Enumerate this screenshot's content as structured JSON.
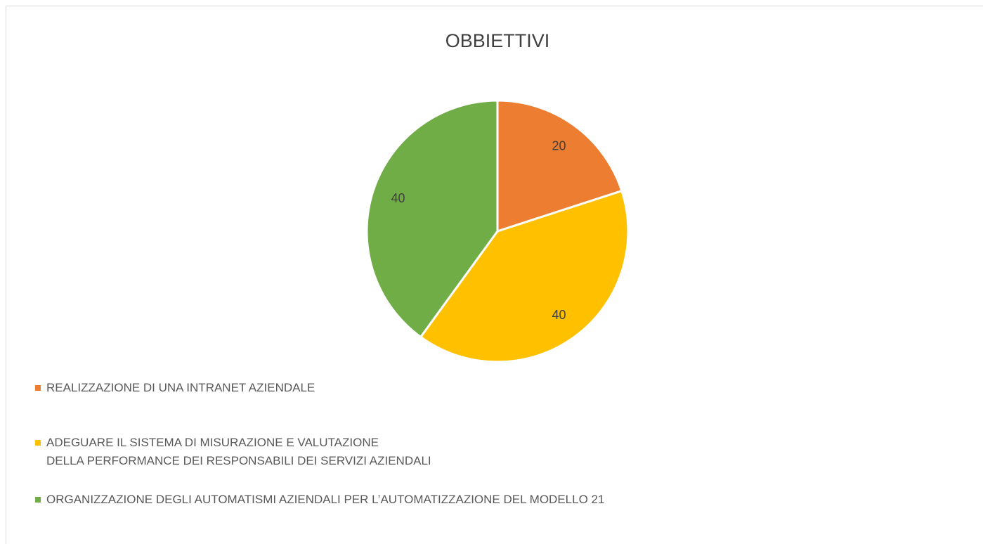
{
  "chart_data": {
    "type": "pie",
    "title": "OBBIETTIVI",
    "categories": [
      "REALIZZAZIONE DI UNA INTRANET AZIENDALE",
      "ADEGUARE IL SISTEMA DI MISURAZIONE E VALUTAZIONE\nDELLA PERFORMANCE DEI RESPONSABILI DEI SERVIZI AZIENDALI",
      "ORGANIZZAZIONE DEGLI AUTOMATISMI AZIENDALI PER L’AUTOMATIZZAZIONE DEL MODELLO 21"
    ],
    "values": [
      20,
      40,
      40
    ],
    "colors": [
      "#ed7d31",
      "#ffc000",
      "#70ad47"
    ]
  }
}
